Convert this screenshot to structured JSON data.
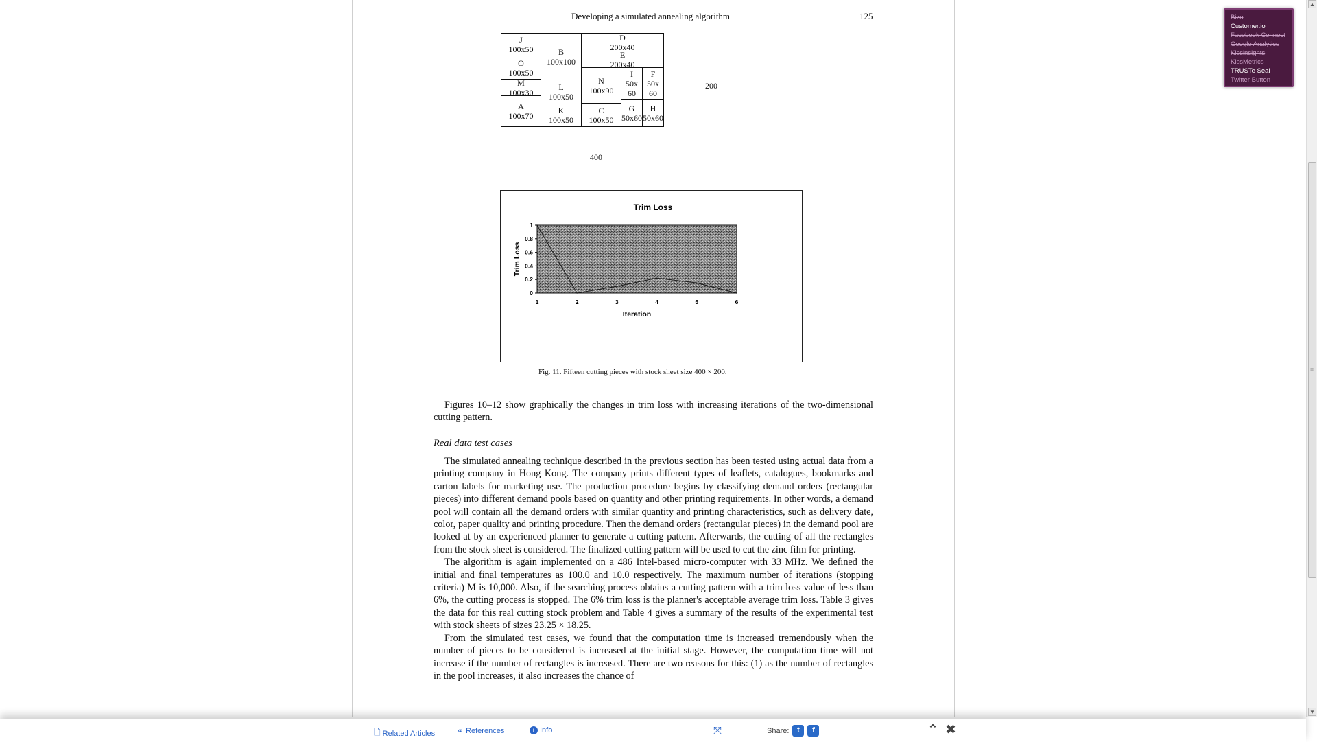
{
  "page": {
    "running_head": "Developing a simulated annealing algorithm",
    "page_number": "125"
  },
  "diagram": {
    "pieces": [
      {
        "name": "J",
        "size": "100x50"
      },
      {
        "name": "O",
        "size": "100x50"
      },
      {
        "name": "M",
        "size": "100x30"
      },
      {
        "name": "A",
        "size": "100x70"
      },
      {
        "name": "B",
        "size": "100x100"
      },
      {
        "name": "L",
        "size": "100x50"
      },
      {
        "name": "K",
        "size": "100x50"
      },
      {
        "name": "D",
        "size": "200x40"
      },
      {
        "name": "E",
        "size": "200x40"
      },
      {
        "name": "N",
        "size": "100x90"
      },
      {
        "name": "C",
        "size": "100x50"
      },
      {
        "name": "I",
        "size": "50x 60"
      },
      {
        "name": "F",
        "size": "50x 60"
      },
      {
        "name": "G",
        "size": "50x60"
      },
      {
        "name": "H",
        "size": "50x60"
      }
    ],
    "width_label": "400",
    "height_label": "200"
  },
  "chart_data": {
    "type": "area",
    "title": "Trim Loss",
    "xlabel": "Iteration",
    "ylabel": "Trim Loss",
    "categories": [
      1,
      2,
      3,
      4,
      5,
      6
    ],
    "series": [
      {
        "values": [
          1.0,
          0.0,
          0.1,
          0.22,
          0.15,
          0.0
        ]
      }
    ],
    "y_ticks": [
      "0",
      "0.2",
      "0.4",
      "0.6",
      "0.8",
      "1"
    ],
    "x_ticks": [
      "1",
      "2",
      "3",
      "4",
      "5",
      "6"
    ],
    "ylim": [
      0,
      1
    ],
    "grid": false,
    "legend": "none"
  },
  "figure": {
    "caption": "Fig. 11. Fifteen cutting pieces with stock sheet size 400 × 200."
  },
  "text": {
    "intro": "Figures 10–12 show graphically the changes in trim loss with increasing iterations of the two-dimensional cutting pattern.",
    "section_heading": "Real data test cases",
    "para1": "The simulated annealing technique described in the previous section has been tested using actual data from a printing company in Hong Kong. The company prints different types of leaflets, catalogues, bookmarks and carton labels for marketing use. The production procedure begins by classifying demand orders (rectangular pieces) into different demand pools based on quantity and other printing requirements. In other words, a demand pool will contain all the demand orders with similar quantity and printing characteristics, such as delivery date, color, paper quality and printing procedure. Then the demand orders (rectangular pieces) in the demand pool are looked at by an experienced planner to generate a cutting pattern. Afterwards, the cutting of all the rectangles from the stock sheet is considered. The finalized cutting pattern will be used to cut the zinc film for printing.",
    "para2": "The algorithm is again implemented on a 486 Intel-based micro-computer with 33 MHz. We defined the initial and final temperatures as 100.0 and 10.0 respectively. The maximum number of iterations (stopping criteria) M is 10,000. Also, if the searching process obtains a cutting pattern with a trim loss value of less than 6%, the cutting process is stopped. The 6% trim loss is the planner's acceptable average trim loss. Table 3 gives the data for this real cutting stock problem and Table 4 gives a summary of the results of the experimental test with stock sheets of sizes 23.25 × 18.25.",
    "para3": "From the simulated test cases, we found that the computation time is increased tremendously when the number of pieces to be considered is increased at the initial stage. However, the computation time will not increase if the number of rectangles is increased. There are two reasons for this: (1) as the number of rectangles in the pool increases, it also increases the chance of"
  },
  "toolbar": {
    "related_articles": "Related Articles",
    "references": "References",
    "info": "Info",
    "share_label": "Share:",
    "twitter": "t",
    "facebook": "f"
  },
  "trackers": [
    {
      "label": "Bizo",
      "enabled": false
    },
    {
      "label": "Customer.io",
      "enabled": true
    },
    {
      "label": "Facebook Connect",
      "enabled": false
    },
    {
      "label": "Google Analytics",
      "enabled": false
    },
    {
      "label": "Kissinsights",
      "enabled": false
    },
    {
      "label": "KissMetrics",
      "enabled": false
    },
    {
      "label": "TRUSTe Seal",
      "enabled": true
    },
    {
      "label": "Twitter Button",
      "enabled": false
    }
  ],
  "colors": {
    "link": "#2a64c8",
    "tracker_bg": "#4a1a3f"
  }
}
